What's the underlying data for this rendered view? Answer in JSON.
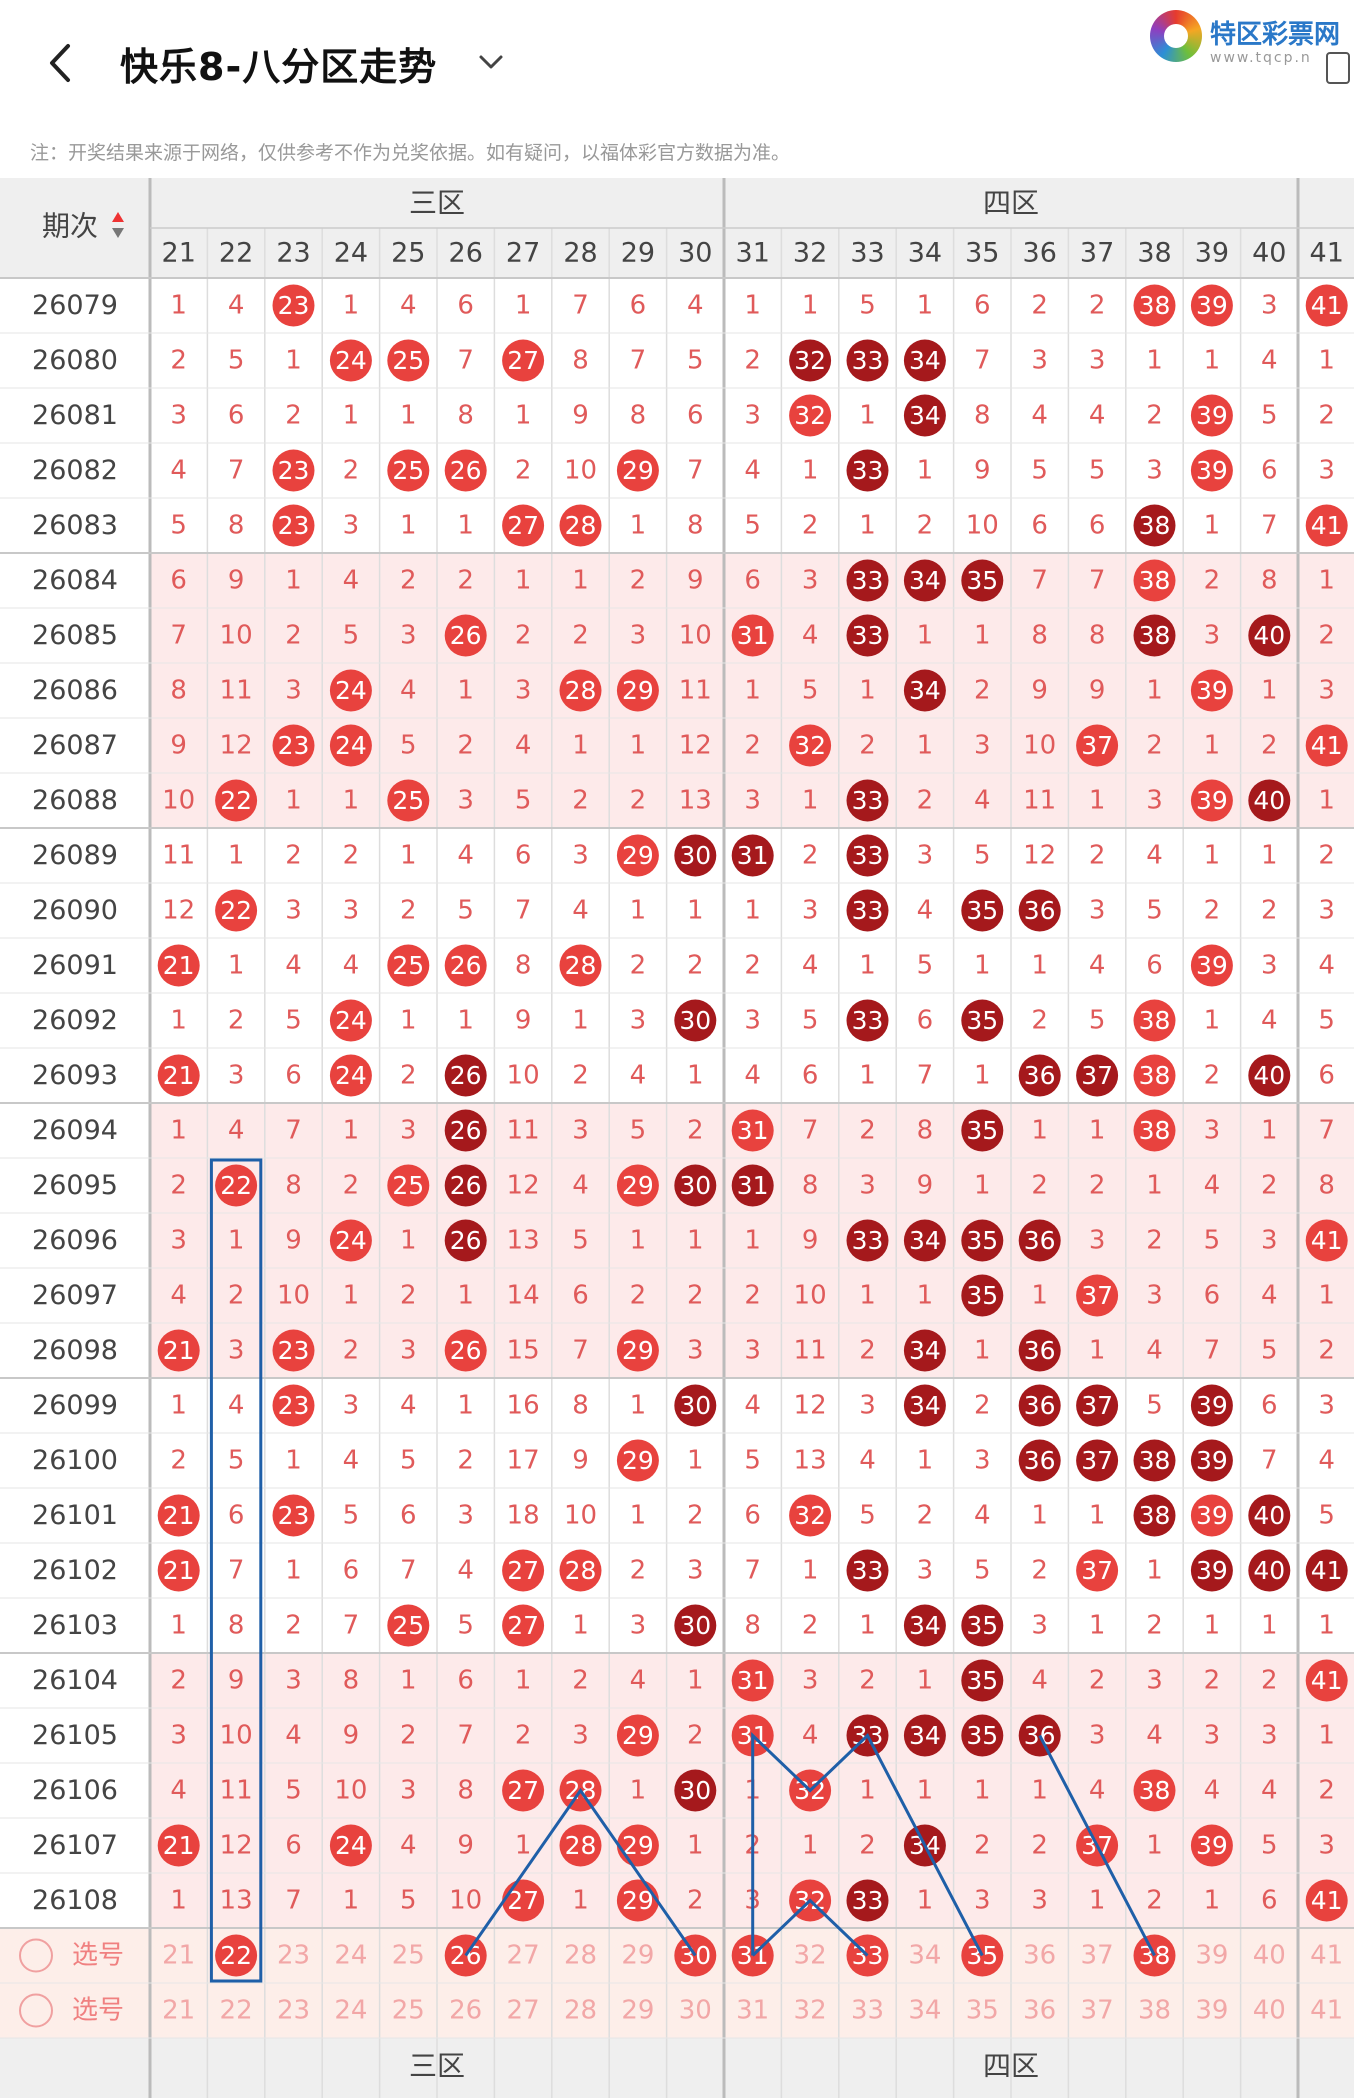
{
  "header": {
    "title": "快乐8-八分区走势",
    "back_icon": "chevron-left-icon",
    "dropdown_icon": "chevron-down-icon"
  },
  "logo": {
    "name": "特区彩票网",
    "url": "www.tqcp.n"
  },
  "note": "注：开奖结果来源于网络，仅供参考不作为兑奖依据。如有疑问，以福体彩官方数据为准。",
  "table": {
    "period_header": "期次",
    "zones": [
      {
        "name": "三区",
        "start": 21,
        "end": 30
      },
      {
        "name": "四区",
        "start": 31,
        "end": 40
      }
    ],
    "columns": [
      21,
      22,
      23,
      24,
      25,
      26,
      27,
      28,
      29,
      30,
      31,
      32,
      33,
      34,
      35,
      36,
      37,
      38,
      39,
      40,
      41
    ],
    "rows": [
      {
        "period": "26079",
        "cells": [
          "1",
          "4",
          "23",
          "1",
          "4",
          "6",
          "1",
          "7",
          "6",
          "4",
          "1",
          "1",
          "5",
          "1",
          "6",
          "2",
          "2",
          "38",
          "39",
          "3",
          "41"
        ]
      },
      {
        "period": "26080",
        "cells": [
          "2",
          "5",
          "1",
          "24",
          "25",
          "7",
          "27",
          "8",
          "7",
          "5",
          "2",
          "32",
          "33",
          "34",
          "7",
          "3",
          "3",
          "1",
          "1",
          "4",
          "1"
        ]
      },
      {
        "period": "26081",
        "cells": [
          "3",
          "6",
          "2",
          "1",
          "1",
          "8",
          "1",
          "9",
          "8",
          "6",
          "3",
          "32",
          "1",
          "34",
          "8",
          "4",
          "4",
          "2",
          "39",
          "5",
          "2"
        ]
      },
      {
        "period": "26082",
        "cells": [
          "4",
          "7",
          "23",
          "2",
          "25",
          "26",
          "2",
          "10",
          "29",
          "7",
          "4",
          "1",
          "33",
          "1",
          "9",
          "5",
          "5",
          "3",
          "39",
          "6",
          "3"
        ]
      },
      {
        "period": "26083",
        "cells": [
          "5",
          "8",
          "23",
          "3",
          "1",
          "1",
          "27",
          "28",
          "1",
          "8",
          "5",
          "2",
          "1",
          "2",
          "10",
          "6",
          "6",
          "38",
          "1",
          "7",
          "41"
        ]
      },
      {
        "period": "26084",
        "cells": [
          "6",
          "9",
          "1",
          "4",
          "2",
          "2",
          "1",
          "1",
          "2",
          "9",
          "6",
          "3",
          "33",
          "34",
          "35",
          "7",
          "7",
          "38",
          "2",
          "8",
          "1"
        ]
      },
      {
        "period": "26085",
        "cells": [
          "7",
          "10",
          "2",
          "5",
          "3",
          "26",
          "2",
          "2",
          "3",
          "10",
          "31",
          "4",
          "33",
          "1",
          "1",
          "8",
          "8",
          "38",
          "3",
          "40",
          "2"
        ]
      },
      {
        "period": "26086",
        "cells": [
          "8",
          "11",
          "3",
          "24",
          "4",
          "1",
          "3",
          "28",
          "29",
          "11",
          "1",
          "5",
          "1",
          "34",
          "2",
          "9",
          "9",
          "1",
          "39",
          "1",
          "3"
        ]
      },
      {
        "period": "26087",
        "cells": [
          "9",
          "12",
          "23",
          "24",
          "5",
          "2",
          "4",
          "1",
          "1",
          "12",
          "2",
          "32",
          "2",
          "1",
          "3",
          "10",
          "37",
          "2",
          "1",
          "2",
          "41"
        ]
      },
      {
        "period": "26088",
        "cells": [
          "10",
          "22",
          "1",
          "1",
          "25",
          "3",
          "5",
          "2",
          "2",
          "13",
          "3",
          "1",
          "33",
          "2",
          "4",
          "11",
          "1",
          "3",
          "39",
          "40",
          "1"
        ]
      },
      {
        "period": "26089",
        "cells": [
          "11",
          "1",
          "2",
          "2",
          "1",
          "4",
          "6",
          "3",
          "29",
          "30",
          "31",
          "2",
          "33",
          "3",
          "5",
          "12",
          "2",
          "4",
          "1",
          "1",
          "2"
        ]
      },
      {
        "period": "26090",
        "cells": [
          "12",
          "22",
          "3",
          "3",
          "2",
          "5",
          "7",
          "4",
          "1",
          "1",
          "1",
          "3",
          "33",
          "4",
          "35",
          "36",
          "3",
          "5",
          "2",
          "2",
          "3"
        ]
      },
      {
        "period": "26091",
        "cells": [
          "21",
          "1",
          "4",
          "4",
          "25",
          "26",
          "8",
          "28",
          "2",
          "2",
          "2",
          "4",
          "1",
          "5",
          "1",
          "1",
          "4",
          "6",
          "39",
          "3",
          "4"
        ]
      },
      {
        "period": "26092",
        "cells": [
          "1",
          "2",
          "5",
          "24",
          "1",
          "1",
          "9",
          "1",
          "3",
          "30",
          "3",
          "5",
          "33",
          "6",
          "35",
          "2",
          "5",
          "38",
          "1",
          "4",
          "5"
        ]
      },
      {
        "period": "26093",
        "cells": [
          "21",
          "3",
          "6",
          "24",
          "2",
          "26",
          "10",
          "2",
          "4",
          "1",
          "4",
          "6",
          "1",
          "7",
          "1",
          "36",
          "37",
          "38",
          "2",
          "40",
          "6"
        ]
      },
      {
        "period": "26094",
        "cells": [
          "1",
          "4",
          "7",
          "1",
          "3",
          "26",
          "11",
          "3",
          "5",
          "2",
          "31",
          "7",
          "2",
          "8",
          "35",
          "1",
          "1",
          "38",
          "3",
          "1",
          "7"
        ]
      },
      {
        "period": "26095",
        "cells": [
          "2",
          "22",
          "8",
          "2",
          "25",
          "26",
          "12",
          "4",
          "29",
          "30",
          "31",
          "8",
          "3",
          "9",
          "1",
          "2",
          "2",
          "1",
          "4",
          "2",
          "8"
        ]
      },
      {
        "period": "26096",
        "cells": [
          "3",
          "1",
          "9",
          "24",
          "1",
          "26",
          "13",
          "5",
          "1",
          "1",
          "1",
          "9",
          "33",
          "34",
          "35",
          "36",
          "3",
          "2",
          "5",
          "3",
          "41"
        ]
      },
      {
        "period": "26097",
        "cells": [
          "4",
          "2",
          "10",
          "1",
          "2",
          "1",
          "14",
          "6",
          "2",
          "2",
          "2",
          "10",
          "1",
          "1",
          "35",
          "1",
          "37",
          "3",
          "6",
          "4",
          "1"
        ]
      },
      {
        "period": "26098",
        "cells": [
          "21",
          "3",
          "23",
          "2",
          "3",
          "26",
          "15",
          "7",
          "29",
          "3",
          "3",
          "11",
          "2",
          "34",
          "1",
          "36",
          "1",
          "4",
          "7",
          "5",
          "2"
        ]
      },
      {
        "period": "26099",
        "cells": [
          "1",
          "4",
          "23",
          "3",
          "4",
          "1",
          "16",
          "8",
          "1",
          "30",
          "4",
          "12",
          "3",
          "34",
          "2",
          "36",
          "37",
          "5",
          "39",
          "6",
          "3"
        ]
      },
      {
        "period": "26100",
        "cells": [
          "2",
          "5",
          "1",
          "4",
          "5",
          "2",
          "17",
          "9",
          "29",
          "1",
          "5",
          "13",
          "4",
          "1",
          "3",
          "36",
          "37",
          "38",
          "39",
          "7",
          "4"
        ]
      },
      {
        "period": "26101",
        "cells": [
          "21",
          "6",
          "23",
          "5",
          "6",
          "3",
          "18",
          "10",
          "1",
          "2",
          "6",
          "32",
          "5",
          "2",
          "4",
          "1",
          "1",
          "38",
          "39",
          "40",
          "5"
        ]
      },
      {
        "period": "26102",
        "cells": [
          "21",
          "7",
          "1",
          "6",
          "7",
          "4",
          "27",
          "28",
          "2",
          "3",
          "7",
          "1",
          "33",
          "3",
          "5",
          "2",
          "37",
          "1",
          "39",
          "40",
          "41"
        ]
      },
      {
        "period": "26103",
        "cells": [
          "1",
          "8",
          "2",
          "7",
          "25",
          "5",
          "27",
          "1",
          "3",
          "30",
          "8",
          "2",
          "1",
          "34",
          "35",
          "3",
          "1",
          "2",
          "1",
          "1",
          "1"
        ]
      },
      {
        "period": "26104",
        "cells": [
          "2",
          "9",
          "3",
          "8",
          "1",
          "6",
          "1",
          "2",
          "4",
          "1",
          "31",
          "3",
          "2",
          "1",
          "35",
          "4",
          "2",
          "3",
          "2",
          "2",
          "41"
        ]
      },
      {
        "period": "26105",
        "cells": [
          "3",
          "10",
          "4",
          "9",
          "2",
          "7",
          "2",
          "3",
          "29",
          "2",
          "31",
          "4",
          "33",
          "34",
          "35",
          "36",
          "3",
          "4",
          "3",
          "3",
          "1"
        ]
      },
      {
        "period": "26106",
        "cells": [
          "4",
          "11",
          "5",
          "10",
          "3",
          "8",
          "27",
          "28",
          "1",
          "30",
          "1",
          "32",
          "1",
          "1",
          "1",
          "1",
          "4",
          "38",
          "4",
          "4",
          "2"
        ]
      },
      {
        "period": "26107",
        "cells": [
          "21",
          "12",
          "6",
          "24",
          "4",
          "9",
          "1",
          "28",
          "29",
          "1",
          "2",
          "1",
          "2",
          "34",
          "2",
          "2",
          "37",
          "1",
          "39",
          "5",
          "3"
        ]
      },
      {
        "period": "26108",
        "cells": [
          "1",
          "13",
          "7",
          "1",
          "5",
          "10",
          "27",
          "1",
          "29",
          "2",
          "3",
          "32",
          "33",
          "1",
          "3",
          "3",
          "1",
          "2",
          "1",
          "6",
          "41"
        ]
      }
    ],
    "select_rows": [
      {
        "label": "选号",
        "cells": [
          "21",
          "22",
          "23",
          "24",
          "25",
          "26",
          "27",
          "28",
          "29",
          "30",
          "31",
          "32",
          "33",
          "34",
          "35",
          "36",
          "37",
          "38",
          "39",
          "40",
          "41"
        ],
        "picked": [
          "22",
          "26",
          "30",
          "31",
          "33",
          "35",
          "38"
        ]
      },
      {
        "label": "选号",
        "cells": [
          "21",
          "22",
          "23",
          "24",
          "25",
          "26",
          "27",
          "28",
          "29",
          "30",
          "31",
          "32",
          "33",
          "34",
          "35",
          "36",
          "37",
          "38",
          "39",
          "40",
          "41"
        ],
        "picked": []
      }
    ],
    "footer_zones": [
      "三区",
      "四区"
    ],
    "colors": {
      "ball_light": "#e8423e",
      "ball_dark": "#a5191c",
      "miss_text": "#e05a5a",
      "band": "#fdeaea",
      "header_bg": "#efefef",
      "select_bg": "#fdeee9",
      "line": "#1f5fa8"
    }
  }
}
